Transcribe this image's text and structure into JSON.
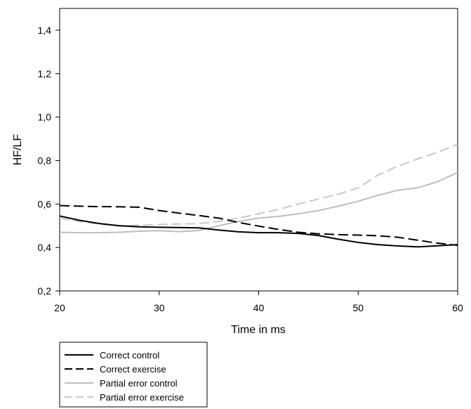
{
  "chart_data": {
    "type": "line",
    "title": "",
    "xlabel": "Time in ms",
    "ylabel": "HF/LF",
    "xlim": [
      20,
      60
    ],
    "ylim": [
      0.2,
      1.5
    ],
    "xticks": [
      20,
      30,
      40,
      50,
      60
    ],
    "xtick_labels": [
      "20",
      "30",
      "40",
      "50",
      "60"
    ],
    "yticks": [
      0.2,
      0.4,
      0.6,
      0.8,
      1.0,
      1.2,
      1.4
    ],
    "ytick_labels": [
      "0,2",
      "0,4",
      "0,6",
      "0,8",
      "1,0",
      "1,2",
      "1,4"
    ],
    "grid": false,
    "legend_position": "bottom-left, below plot",
    "series": [
      {
        "name": "Correct control",
        "color": "#000000",
        "dash": "solid",
        "points": [
          [
            20,
            0.545
          ],
          [
            22,
            0.525
          ],
          [
            24,
            0.51
          ],
          [
            26,
            0.5
          ],
          [
            28,
            0.495
          ],
          [
            30,
            0.493
          ],
          [
            32,
            0.492
          ],
          [
            34,
            0.49
          ],
          [
            36,
            0.48
          ],
          [
            38,
            0.472
          ],
          [
            40,
            0.468
          ],
          [
            42,
            0.468
          ],
          [
            44,
            0.465
          ],
          [
            46,
            0.455
          ],
          [
            48,
            0.438
          ],
          [
            50,
            0.423
          ],
          [
            52,
            0.413
          ],
          [
            54,
            0.407
          ],
          [
            56,
            0.403
          ],
          [
            58,
            0.408
          ],
          [
            60,
            0.413
          ]
        ]
      },
      {
        "name": "Correct exercise",
        "color": "#000000",
        "dash": "dashed",
        "points": [
          [
            20,
            0.593
          ],
          [
            22,
            0.59
          ],
          [
            24,
            0.588
          ],
          [
            26,
            0.587
          ],
          [
            28,
            0.585
          ],
          [
            30,
            0.57
          ],
          [
            32,
            0.558
          ],
          [
            34,
            0.547
          ],
          [
            36,
            0.535
          ],
          [
            38,
            0.515
          ],
          [
            40,
            0.498
          ],
          [
            42,
            0.483
          ],
          [
            44,
            0.47
          ],
          [
            46,
            0.463
          ],
          [
            48,
            0.459
          ],
          [
            50,
            0.457
          ],
          [
            52,
            0.454
          ],
          [
            54,
            0.447
          ],
          [
            56,
            0.433
          ],
          [
            58,
            0.42
          ],
          [
            60,
            0.41
          ]
        ]
      },
      {
        "name": "Partial error control",
        "color": "#bdbdbd",
        "dash": "solid",
        "points": [
          [
            20,
            0.47
          ],
          [
            22,
            0.468
          ],
          [
            24,
            0.468
          ],
          [
            26,
            0.47
          ],
          [
            28,
            0.475
          ],
          [
            30,
            0.477
          ],
          [
            32,
            0.473
          ],
          [
            34,
            0.478
          ],
          [
            36,
            0.5
          ],
          [
            38,
            0.52
          ],
          [
            40,
            0.535
          ],
          [
            42,
            0.543
          ],
          [
            44,
            0.555
          ],
          [
            46,
            0.57
          ],
          [
            48,
            0.59
          ],
          [
            50,
            0.613
          ],
          [
            52,
            0.64
          ],
          [
            54,
            0.663
          ],
          [
            56,
            0.675
          ],
          [
            58,
            0.703
          ],
          [
            60,
            0.745
          ]
        ]
      },
      {
        "name": "Partial error exercise",
        "color": "#c8c8c8",
        "dash": "dashed",
        "points": [
          [
            20,
            0.535
          ],
          [
            22,
            0.52
          ],
          [
            24,
            0.508
          ],
          [
            26,
            0.5
          ],
          [
            28,
            0.502
          ],
          [
            30,
            0.506
          ],
          [
            32,
            0.508
          ],
          [
            34,
            0.51
          ],
          [
            36,
            0.52
          ],
          [
            38,
            0.535
          ],
          [
            40,
            0.555
          ],
          [
            42,
            0.575
          ],
          [
            44,
            0.6
          ],
          [
            46,
            0.623
          ],
          [
            48,
            0.645
          ],
          [
            50,
            0.675
          ],
          [
            52,
            0.733
          ],
          [
            54,
            0.775
          ],
          [
            56,
            0.808
          ],
          [
            58,
            0.838
          ],
          [
            60,
            0.875
          ]
        ]
      }
    ]
  }
}
